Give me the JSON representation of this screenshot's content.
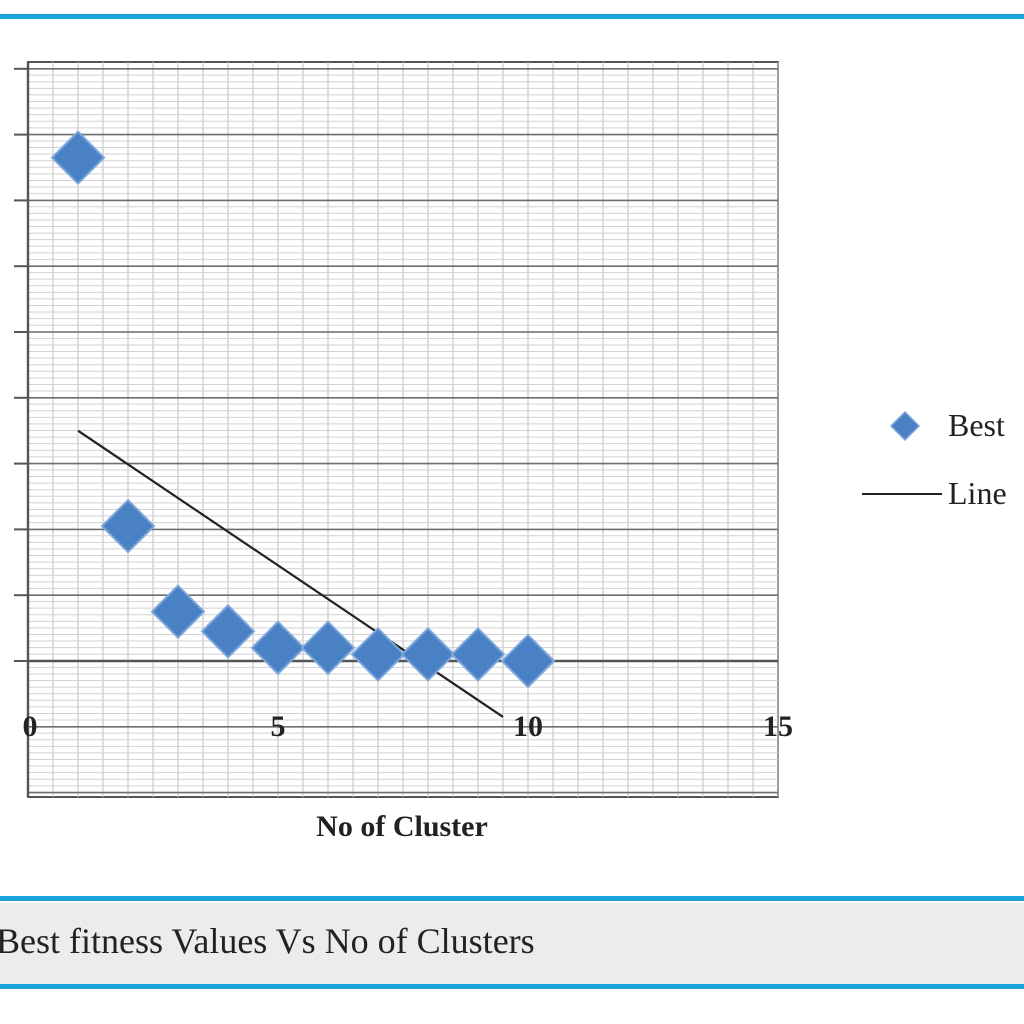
{
  "caption": "Best fitness Values Vs No of Clusters",
  "colors": {
    "rule": "#1aa3dc",
    "marker": "#4a80c4",
    "line": "#222222"
  },
  "chart_data": {
    "type": "scatter",
    "xlabel": "No of Cluster",
    "xlim": [
      0,
      15
    ],
    "xticks": [
      "0",
      "5",
      "10",
      "15"
    ],
    "ylim": [
      0,
      10
    ],
    "grid": true,
    "legend_position": "right",
    "legend": [
      "Best",
      "Line"
    ],
    "series": [
      {
        "name": "Best",
        "kind": "scatter",
        "marker": "diamond",
        "x": [
          1,
          2,
          3,
          4,
          5,
          6,
          7,
          8,
          9,
          10
        ],
        "y": [
          7.65,
          2.05,
          0.75,
          0.45,
          0.2,
          0.2,
          0.1,
          0.1,
          0.1,
          0.0
        ]
      },
      {
        "name": "Line",
        "kind": "line",
        "x": [
          1,
          9.5
        ],
        "y": [
          3.5,
          -0.85
        ]
      }
    ]
  }
}
